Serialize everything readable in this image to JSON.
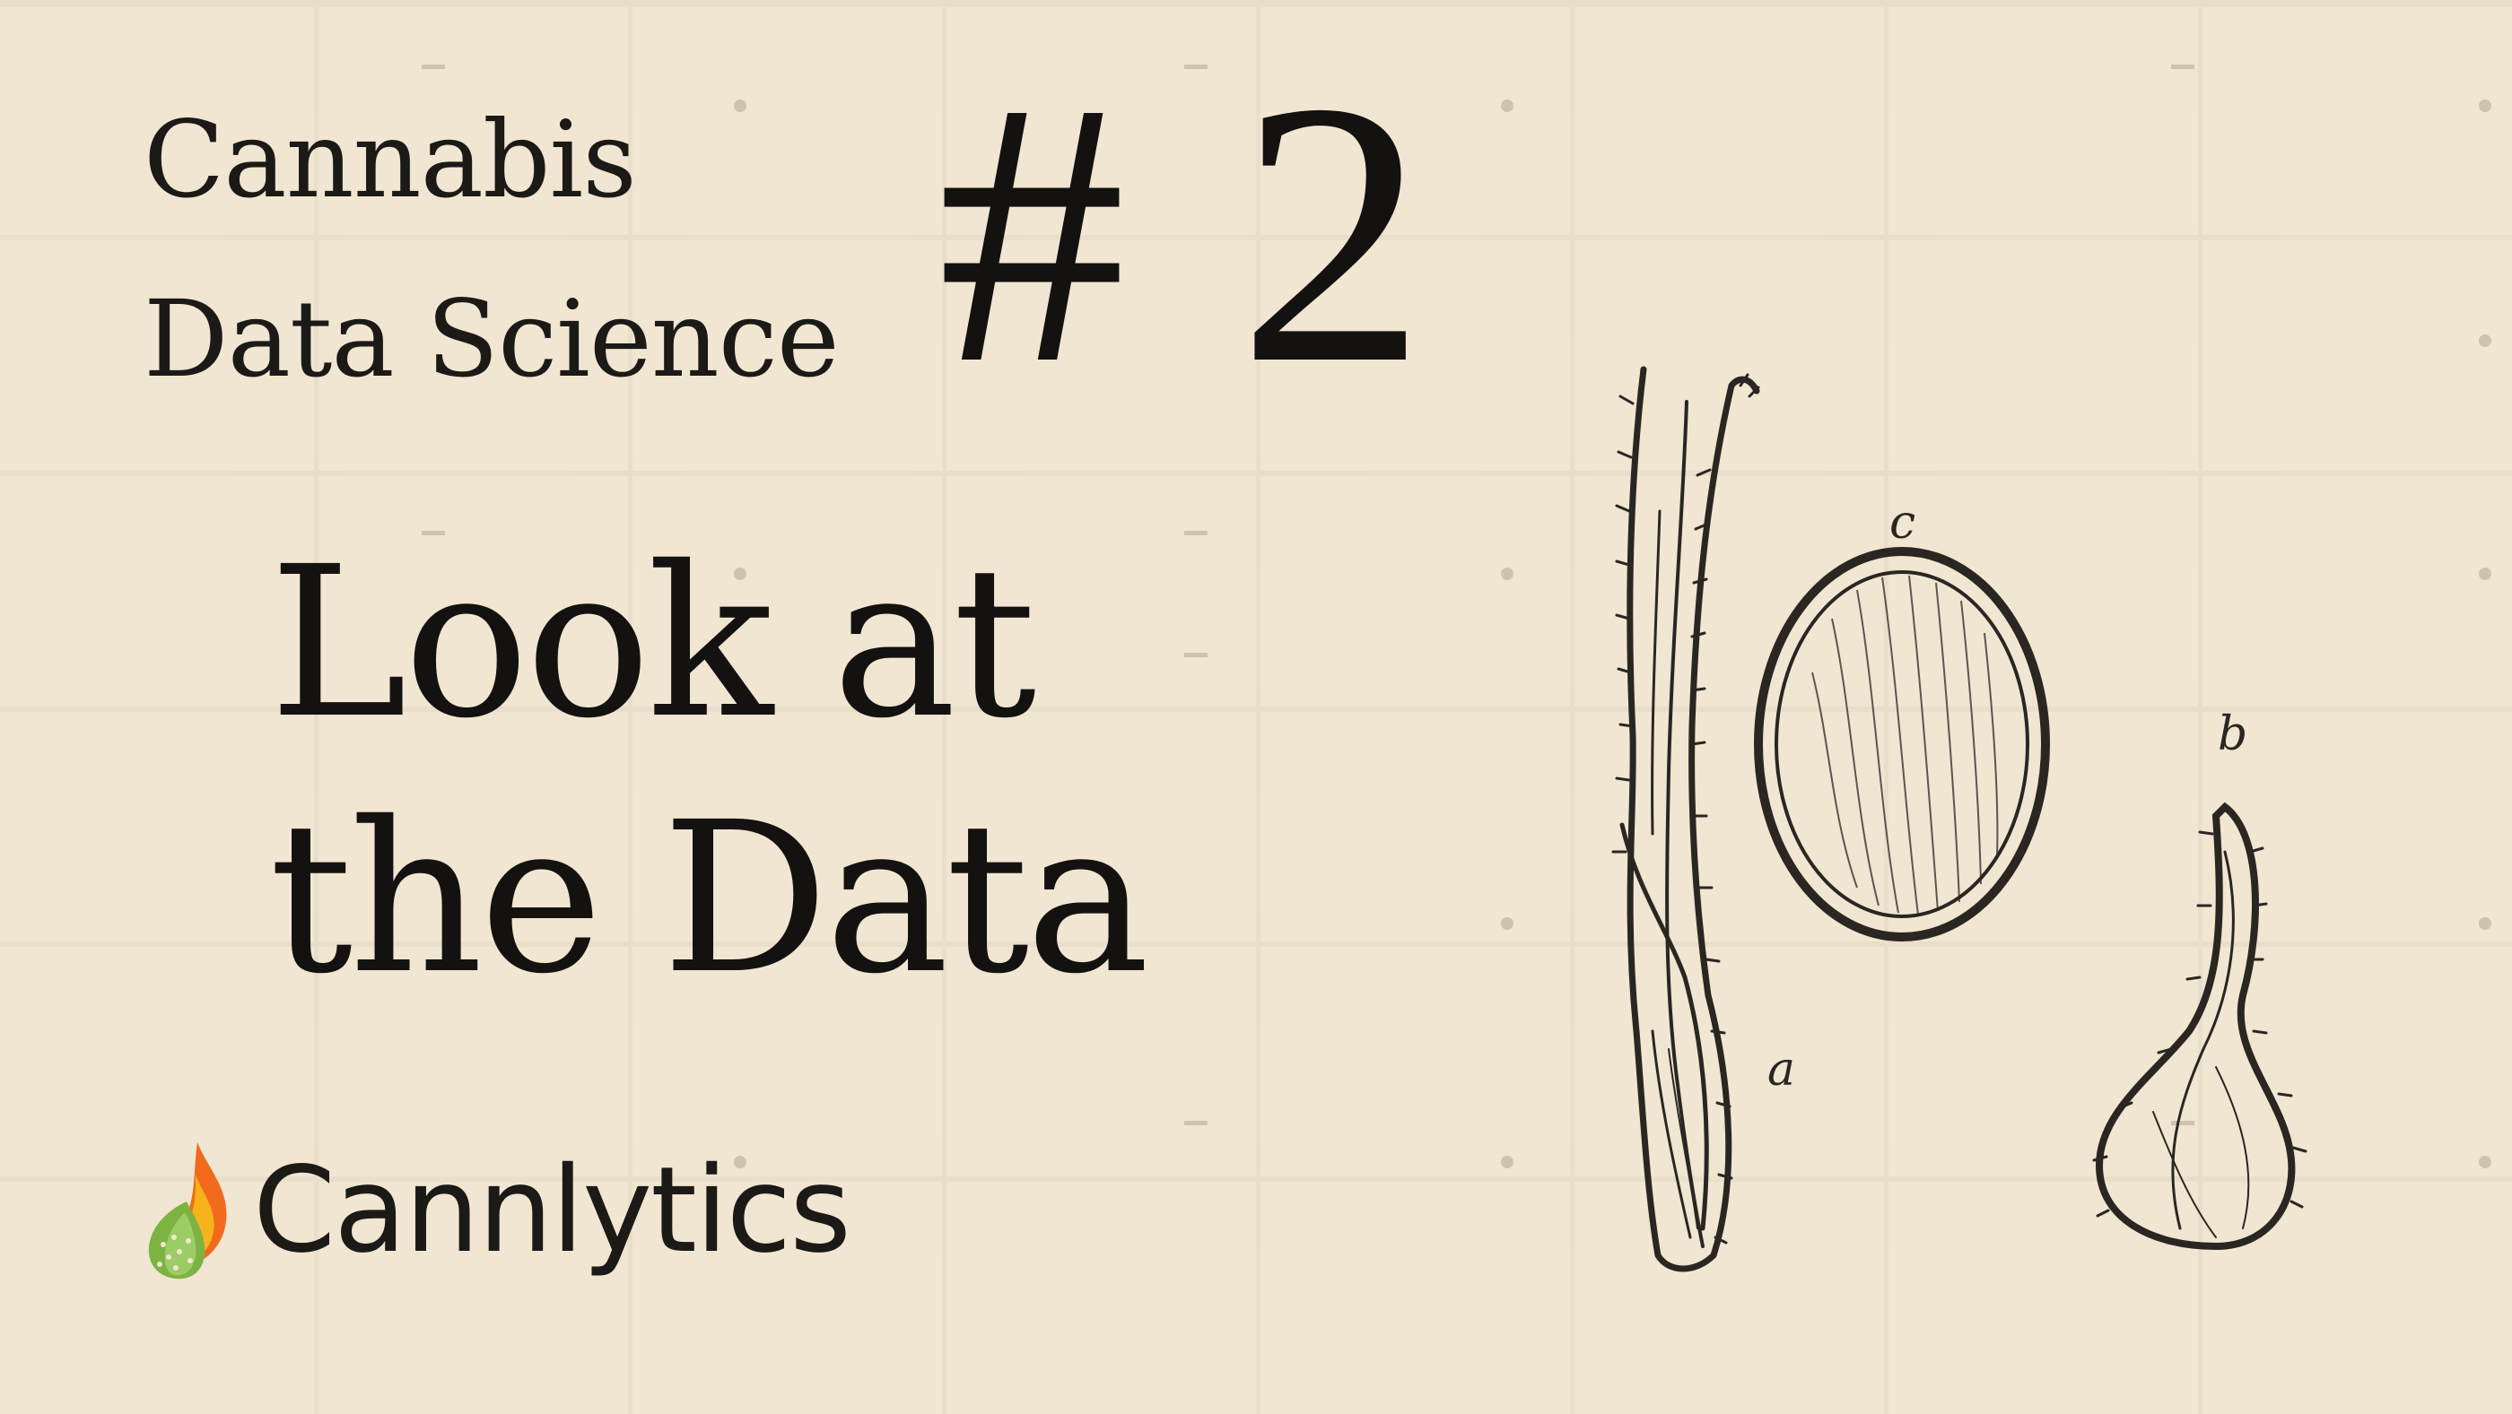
{
  "series": {
    "line1": "Cannabis",
    "line2": "Data Science"
  },
  "episode": {
    "number": "# 2"
  },
  "headline": {
    "line1": "Look at",
    "line2": "the Data"
  },
  "brand": {
    "name": "Cannlytics",
    "logo_icon": "flame-leaf-logo",
    "colors": {
      "flame_orange": "#f26a1b",
      "flame_yellow": "#f7b31b",
      "leaf_green": "#7cb342"
    }
  },
  "illustration": {
    "icon": "cannabis-seed-engraving",
    "labels": {
      "a": "a",
      "b": "b",
      "c": "c"
    }
  },
  "colors": {
    "background": "#f0e6d2",
    "ink": "#141210"
  }
}
